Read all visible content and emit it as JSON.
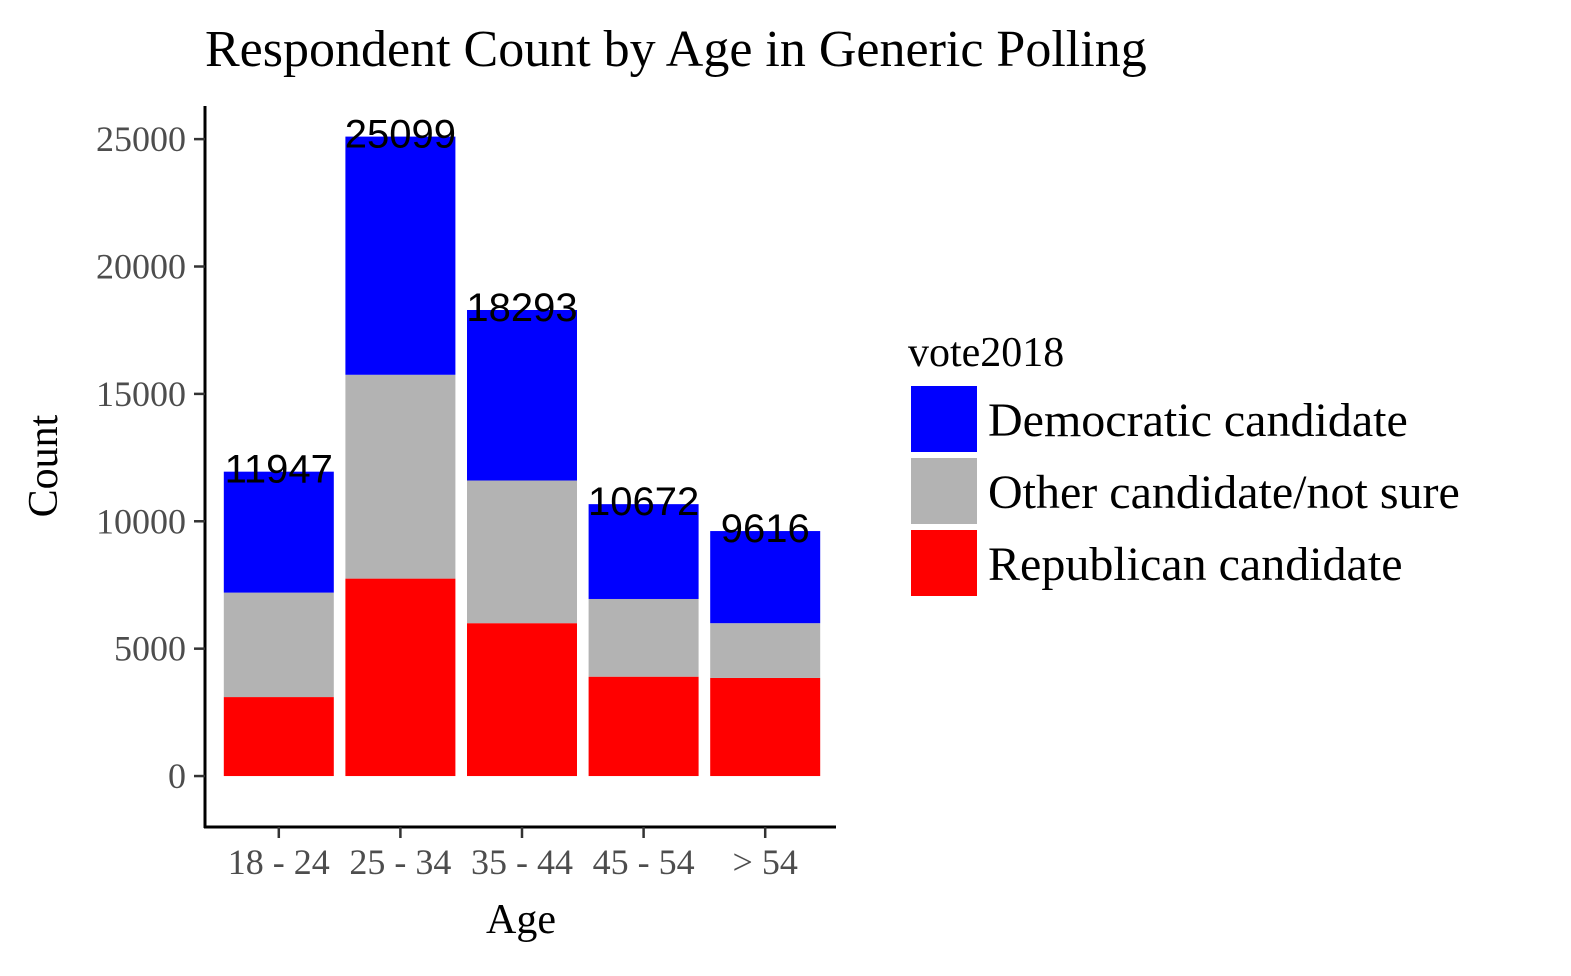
{
  "chart_data": {
    "type": "bar",
    "stacked": true,
    "title": "Respondent Count by Age in Generic Polling",
    "xlabel": "Age",
    "ylabel": "Count",
    "categories": [
      "18 - 24",
      "25 - 34",
      "35 - 44",
      "45 - 54",
      "> 54"
    ],
    "ylim": [
      -2000,
      26300
    ],
    "yticks": [
      0,
      5000,
      10000,
      15000,
      20000,
      25000
    ],
    "grid": false,
    "legend": {
      "title": "vote2018",
      "position": "right"
    },
    "series": [
      {
        "name": "Republican candidate",
        "color": "#ff0000",
        "values": [
          3100,
          7750,
          6000,
          3900,
          3850
        ]
      },
      {
        "name": "Other candidate/not sure",
        "color": "#b3b3b3",
        "values": [
          4100,
          8000,
          5600,
          3050,
          2150
        ]
      },
      {
        "name": "Democratic candidate",
        "color": "#0000ff",
        "values": [
          4747,
          9349,
          6693,
          3722,
          3616
        ]
      }
    ],
    "legend_order": [
      "Democratic candidate",
      "Other candidate/not sure",
      "Republican candidate"
    ],
    "totals": [
      11947,
      25099,
      18293,
      10672,
      9616
    ]
  }
}
